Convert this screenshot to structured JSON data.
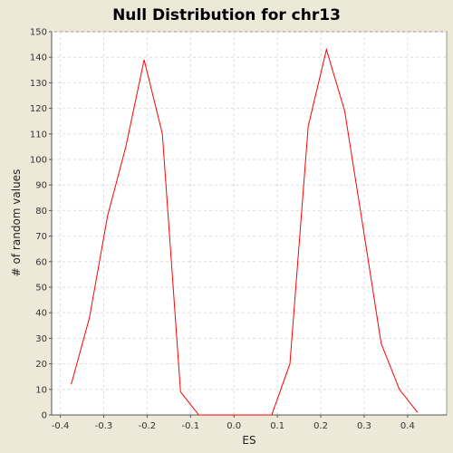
{
  "chart_data": {
    "type": "line",
    "title": "Null Distribution for chr13",
    "xlabel": "ES",
    "ylabel": "# of random values",
    "xlim": [
      -0.42,
      0.49
    ],
    "ylim": [
      0,
      150
    ],
    "x_ticks": [
      -0.4,
      -0.3,
      -0.2,
      -0.1,
      0.0,
      0.1,
      0.2,
      0.3,
      0.4
    ],
    "x_tick_labels": [
      "-0.4",
      "-0.3",
      "-0.2",
      "-0.1",
      "0.0",
      "0.1",
      "0.2",
      "0.3",
      "0.4"
    ],
    "y_ticks": [
      0,
      10,
      20,
      30,
      40,
      50,
      60,
      70,
      80,
      90,
      100,
      110,
      120,
      130,
      140,
      150
    ],
    "y_tick_labels": [
      "0",
      "10",
      "20",
      "30",
      "40",
      "50",
      "60",
      "70",
      "80",
      "90",
      "100",
      "110",
      "120",
      "130",
      "140",
      "150"
    ],
    "grid": true,
    "series": [
      {
        "color": "#ff0000",
        "x": [
          -0.375,
          -0.333,
          -0.291,
          -0.249,
          -0.207,
          -0.165,
          -0.123,
          -0.081,
          -0.039,
          0.003,
          0.045,
          0.087,
          0.129,
          0.171,
          0.213,
          0.255,
          0.297,
          0.339,
          0.381,
          0.423
        ],
        "y": [
          12,
          38,
          78,
          105,
          139,
          110,
          9,
          0,
          0,
          0,
          0,
          0,
          20,
          113,
          143,
          119,
          74,
          28,
          10,
          1
        ]
      }
    ]
  }
}
